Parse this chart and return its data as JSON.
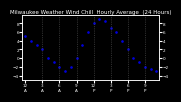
{
  "title": "Milwaukee Weather Wind Chill  Hourly Average  (24 Hours)",
  "title_fontsize": 4.0,
  "x_hours": [
    0,
    1,
    2,
    3,
    4,
    5,
    6,
    7,
    8,
    9,
    10,
    11,
    12,
    13,
    14,
    15,
    16,
    17,
    18,
    19,
    20,
    21,
    22,
    23
  ],
  "wind_chill": [
    5,
    4,
    3,
    2,
    0,
    -1,
    -2,
    -3,
    -2,
    0,
    3,
    6,
    8,
    9,
    8.5,
    7,
    6,
    4,
    2,
    0,
    -1,
    -2,
    -2.5,
    -3
  ],
  "line_color": "#0000dd",
  "marker_size": 1.8,
  "bg_color": "#000000",
  "plot_bg_color": "#000000",
  "grid_color": "#555555",
  "text_color": "#ffffff",
  "ylim": [
    -5,
    10
  ],
  "yticks": [
    -4,
    -2,
    0,
    2,
    4,
    6,
    8
  ],
  "tick_fontsize": 3.0,
  "grid_x_positions": [
    3,
    6,
    9,
    12,
    15,
    18,
    21
  ],
  "xtick_every": 3
}
